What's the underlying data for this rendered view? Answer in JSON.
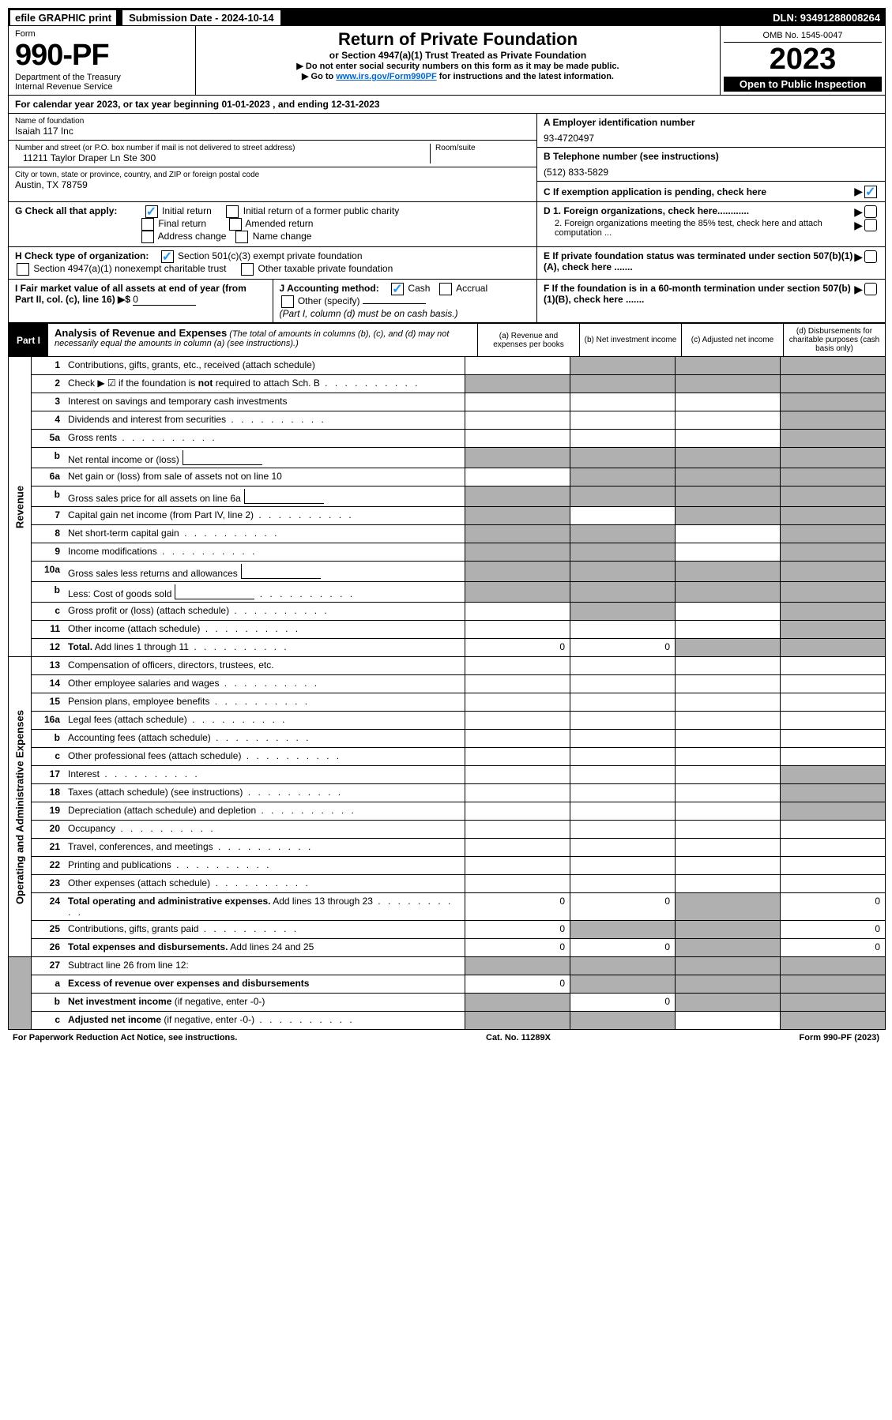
{
  "topbar": {
    "efile": "efile GRAPHIC print",
    "submission_label": "Submission Date - 2024-10-14",
    "dln": "DLN: 93491288008264"
  },
  "header": {
    "form_word": "Form",
    "form_no": "990-PF",
    "dept": "Department of the Treasury",
    "irs": "Internal Revenue Service",
    "title": "Return of Private Foundation",
    "subtitle": "or Section 4947(a)(1) Trust Treated as Private Foundation",
    "instr1": "▶ Do not enter social security numbers on this form as it may be made public.",
    "instr2_pre": "▶ Go to ",
    "instr2_link": "www.irs.gov/Form990PF",
    "instr2_post": " for instructions and the latest information.",
    "omb": "OMB No. 1545-0047",
    "year": "2023",
    "open": "Open to Public Inspection"
  },
  "calendar": "For calendar year 2023, or tax year beginning 01-01-2023           , and ending 12-31-2023",
  "info": {
    "name_label": "Name of foundation",
    "name": "Isaiah 117 Inc",
    "ein_label": "A Employer identification number",
    "ein": "93-4720497",
    "addr_label": "Number and street (or P.O. box number if mail is not delivered to street address)",
    "addr": "11211 Taylor Draper Ln Ste 300",
    "room_label": "Room/suite",
    "tel_label": "B Telephone number (see instructions)",
    "tel": "(512) 833-5829",
    "city_label": "City or town, state or province, country, and ZIP or foreign postal code",
    "city": "Austin, TX  78759",
    "c_label": "C If exemption application is pending, check here"
  },
  "g": {
    "label": "G Check all that apply:",
    "initial": "Initial return",
    "initial_former": "Initial return of a former public charity",
    "final": "Final return",
    "amended": "Amended return",
    "address": "Address change",
    "name": "Name change"
  },
  "d": {
    "d1": "D 1. Foreign organizations, check here............",
    "d2": "2. Foreign organizations meeting the 85% test, check here and attach computation ..."
  },
  "h": {
    "label": "H Check type of organization:",
    "c3": "Section 501(c)(3) exempt private foundation",
    "trust": "Section 4947(a)(1) nonexempt charitable trust",
    "other": "Other taxable private foundation"
  },
  "e": "E  If private foundation status was terminated under section 507(b)(1)(A), check here .......",
  "i": {
    "label": "I Fair market value of all assets at end of year (from Part II, col. (c), line 16) ▶$",
    "val": "0"
  },
  "j": {
    "label": "J Accounting method:",
    "cash": "Cash",
    "accrual": "Accrual",
    "other": "Other (specify)",
    "note": "(Part I, column (d) must be on cash basis.)"
  },
  "f": "F  If the foundation is in a 60-month termination under section 507(b)(1)(B), check here .......",
  "part1": {
    "label": "Part I",
    "title": "Analysis of Revenue and Expenses",
    "note": "(The total of amounts in columns (b), (c), and (d) may not necessarily equal the amounts in column (a) (see instructions).)",
    "col_a": "(a)   Revenue and expenses per books",
    "col_b": "(b)   Net investment income",
    "col_c": "(c)   Adjusted net income",
    "col_d": "(d)   Disbursements for charitable purposes (cash basis only)"
  },
  "revenue_label": "Revenue",
  "expense_label": "Operating and Administrative Expenses",
  "rows": [
    {
      "n": "1",
      "d": "Contributions, gifts, grants, etc., received (attach schedule)",
      "s": [
        false,
        true,
        true,
        true
      ]
    },
    {
      "n": "2",
      "d": "Check ▶ ☑ if the foundation is <b>not</b> required to attach Sch. B",
      "s": [
        true,
        true,
        true,
        true
      ],
      "dots": true
    },
    {
      "n": "3",
      "d": "Interest on savings and temporary cash investments",
      "s": [
        false,
        false,
        false,
        true
      ]
    },
    {
      "n": "4",
      "d": "Dividends and interest from securities",
      "s": [
        false,
        false,
        false,
        true
      ],
      "dots": true
    },
    {
      "n": "5a",
      "d": "Gross rents",
      "s": [
        false,
        false,
        false,
        true
      ],
      "dots": true
    },
    {
      "n": "b",
      "d": "Net rental income or (loss)",
      "s": [
        true,
        true,
        true,
        true
      ],
      "inner": true
    },
    {
      "n": "6a",
      "d": "Net gain or (loss) from sale of assets not on line 10",
      "s": [
        false,
        true,
        true,
        true
      ]
    },
    {
      "n": "b",
      "d": "Gross sales price for all assets on line 6a",
      "s": [
        true,
        true,
        true,
        true
      ],
      "inner": true
    },
    {
      "n": "7",
      "d": "Capital gain net income (from Part IV, line 2)",
      "s": [
        true,
        false,
        true,
        true
      ],
      "dots": true
    },
    {
      "n": "8",
      "d": "Net short-term capital gain",
      "s": [
        true,
        true,
        false,
        true
      ],
      "dots": true
    },
    {
      "n": "9",
      "d": "Income modifications",
      "s": [
        true,
        true,
        false,
        true
      ],
      "dots": true
    },
    {
      "n": "10a",
      "d": "Gross sales less returns and allowances",
      "s": [
        true,
        true,
        true,
        true
      ],
      "inner": true
    },
    {
      "n": "b",
      "d": "Less: Cost of goods sold",
      "s": [
        true,
        true,
        true,
        true
      ],
      "inner": true,
      "dots": true
    },
    {
      "n": "c",
      "d": "Gross profit or (loss) (attach schedule)",
      "s": [
        false,
        true,
        false,
        true
      ],
      "dots": true
    },
    {
      "n": "11",
      "d": "Other income (attach schedule)",
      "s": [
        false,
        false,
        false,
        true
      ],
      "dots": true
    },
    {
      "n": "12",
      "d": "<b>Total.</b> Add lines 1 through 11",
      "s": [
        false,
        false,
        true,
        true
      ],
      "dots": true,
      "a": "0",
      "b": "0"
    }
  ],
  "exp_rows": [
    {
      "n": "13",
      "d": "Compensation of officers, directors, trustees, etc.",
      "s": [
        false,
        false,
        false,
        false
      ]
    },
    {
      "n": "14",
      "d": "Other employee salaries and wages",
      "s": [
        false,
        false,
        false,
        false
      ],
      "dots": true
    },
    {
      "n": "15",
      "d": "Pension plans, employee benefits",
      "s": [
        false,
        false,
        false,
        false
      ],
      "dots": true
    },
    {
      "n": "16a",
      "d": "Legal fees (attach schedule)",
      "s": [
        false,
        false,
        false,
        false
      ],
      "dots": true
    },
    {
      "n": "b",
      "d": "Accounting fees (attach schedule)",
      "s": [
        false,
        false,
        false,
        false
      ],
      "dots": true
    },
    {
      "n": "c",
      "d": "Other professional fees (attach schedule)",
      "s": [
        false,
        false,
        false,
        false
      ],
      "dots": true
    },
    {
      "n": "17",
      "d": "Interest",
      "s": [
        false,
        false,
        false,
        true
      ],
      "dots": true
    },
    {
      "n": "18",
      "d": "Taxes (attach schedule) (see instructions)",
      "s": [
        false,
        false,
        false,
        true
      ],
      "dots": true
    },
    {
      "n": "19",
      "d": "Depreciation (attach schedule) and depletion",
      "s": [
        false,
        false,
        false,
        true
      ],
      "dots": true
    },
    {
      "n": "20",
      "d": "Occupancy",
      "s": [
        false,
        false,
        false,
        false
      ],
      "dots": true
    },
    {
      "n": "21",
      "d": "Travel, conferences, and meetings",
      "s": [
        false,
        false,
        false,
        false
      ],
      "dots": true
    },
    {
      "n": "22",
      "d": "Printing and publications",
      "s": [
        false,
        false,
        false,
        false
      ],
      "dots": true
    },
    {
      "n": "23",
      "d": "Other expenses (attach schedule)",
      "s": [
        false,
        false,
        false,
        false
      ],
      "dots": true
    },
    {
      "n": "24",
      "d": "<b>Total operating and administrative expenses.</b> Add lines 13 through 23",
      "s": [
        false,
        false,
        true,
        false
      ],
      "dots": true,
      "a": "0",
      "b": "0",
      "dd": "0"
    },
    {
      "n": "25",
      "d": "Contributions, gifts, grants paid",
      "s": [
        false,
        true,
        true,
        false
      ],
      "dots": true,
      "a": "0",
      "dd": "0"
    },
    {
      "n": "26",
      "d": "<b>Total expenses and disbursements.</b> Add lines 24 and 25",
      "s": [
        false,
        false,
        true,
        false
      ],
      "a": "0",
      "b": "0",
      "dd": "0"
    }
  ],
  "final_rows": [
    {
      "n": "27",
      "d": "Subtract line 26 from line 12:",
      "s": [
        true,
        true,
        true,
        true
      ]
    },
    {
      "n": "a",
      "d": "<b>Excess of revenue over expenses and disbursements</b>",
      "s": [
        false,
        true,
        true,
        true
      ],
      "a": "0"
    },
    {
      "n": "b",
      "d": "<b>Net investment income</b> (if negative, enter -0-)",
      "s": [
        true,
        false,
        true,
        true
      ],
      "b": "0"
    },
    {
      "n": "c",
      "d": "<b>Adjusted net income</b> (if negative, enter -0-)",
      "s": [
        true,
        true,
        false,
        true
      ],
      "dots": true
    }
  ],
  "footer": {
    "left": "For Paperwork Reduction Act Notice, see instructions.",
    "mid": "Cat. No. 11289X",
    "right": "Form 990-PF (2023)"
  }
}
